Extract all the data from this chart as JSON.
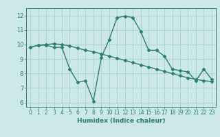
{
  "line1_x": [
    0,
    1,
    2,
    3,
    4,
    5,
    6,
    7,
    8,
    9,
    10,
    11,
    12,
    13,
    14,
    15,
    16,
    17,
    18,
    19,
    20,
    21,
    22,
    23
  ],
  "line1_y": [
    9.8,
    9.95,
    9.95,
    9.8,
    9.8,
    8.3,
    7.4,
    7.5,
    6.1,
    9.1,
    10.35,
    11.85,
    11.95,
    11.85,
    10.9,
    9.6,
    9.6,
    9.2,
    8.3,
    8.2,
    8.1,
    7.5,
    8.3,
    7.6
  ],
  "line2_x": [
    0,
    1,
    2,
    3,
    4,
    5,
    6,
    7,
    8,
    9,
    10,
    11,
    12,
    13,
    14,
    15,
    16,
    17,
    18,
    19,
    20,
    21,
    22,
    23
  ],
  "line2_y": [
    9.8,
    9.95,
    10.0,
    10.05,
    10.0,
    9.9,
    9.75,
    9.6,
    9.5,
    9.35,
    9.2,
    9.05,
    8.9,
    8.75,
    8.6,
    8.45,
    8.3,
    8.15,
    8.0,
    7.85,
    7.7,
    7.6,
    7.5,
    7.45
  ],
  "line_color": "#2a7d6f",
  "bg_color": "#cce8e8",
  "grid_color": "#aacece",
  "xlabel": "Humidex (Indice chaleur)",
  "xlim": [
    -0.5,
    23.5
  ],
  "ylim": [
    5.7,
    12.5
  ],
  "yticks": [
    6,
    7,
    8,
    9,
    10,
    11,
    12
  ],
  "xticks": [
    0,
    1,
    2,
    3,
    4,
    5,
    6,
    7,
    8,
    9,
    10,
    11,
    12,
    13,
    14,
    15,
    16,
    17,
    18,
    19,
    20,
    21,
    22,
    23
  ],
  "marker": "D",
  "marker_size": 2.5,
  "linewidth": 1.0
}
